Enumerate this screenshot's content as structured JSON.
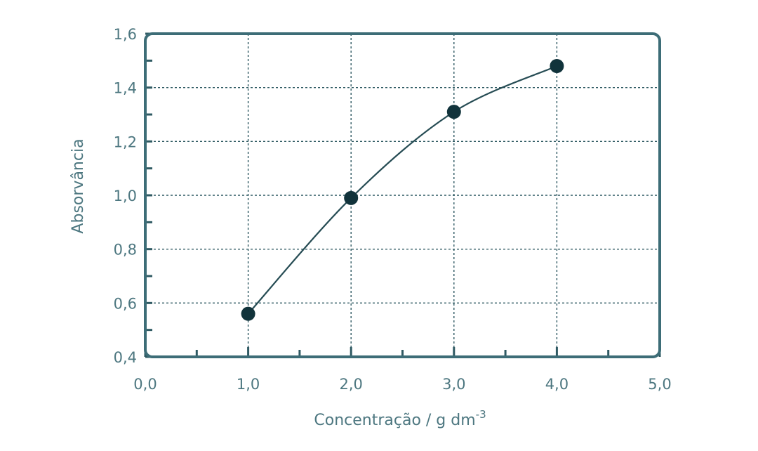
{
  "chart_data": {
    "type": "scatter",
    "xlabel": "Concentração / g dm",
    "xlabel_superscript": "-3",
    "ylabel": "Absorvância",
    "xlim": [
      0.0,
      5.0
    ],
    "ylim": [
      0.4,
      1.6
    ],
    "x_ticks": [
      "0,0",
      "1,0",
      "2,0",
      "3,0",
      "4,0",
      "5,0"
    ],
    "y_ticks": [
      "0,4",
      "0,6",
      "0,8",
      "1,0",
      "1,2",
      "1,4",
      "1,6"
    ],
    "x_tick_values": [
      0,
      1,
      2,
      3,
      4,
      5
    ],
    "y_tick_values": [
      0.4,
      0.6,
      0.8,
      1.0,
      1.2,
      1.4,
      1.6
    ],
    "grid": true,
    "points": [
      {
        "x": 1.0,
        "y": 0.56
      },
      {
        "x": 2.0,
        "y": 0.99
      },
      {
        "x": 3.0,
        "y": 1.31
      },
      {
        "x": 4.0,
        "y": 1.48
      }
    ],
    "trend": "smooth curve through points",
    "colors": {
      "frame": "#3d6d77",
      "points": "#11333b",
      "text": "#4d7780"
    }
  }
}
